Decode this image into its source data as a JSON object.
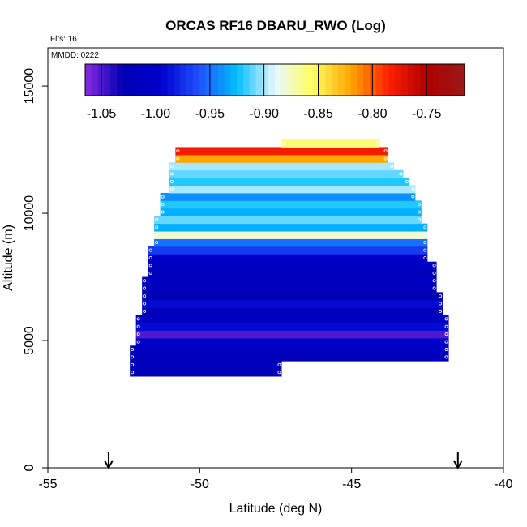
{
  "chart_data": {
    "type": "heatmap",
    "title": "ORCAS RF16 DBARU_RWO (Log)",
    "xlabel": "Latitude (deg N)",
    "ylabel": "Altitude (m)",
    "xlim": [
      -55,
      -40
    ],
    "ylim": [
      0,
      16500
    ],
    "x_ticks": [
      "-55",
      "-50",
      "-45",
      "-40"
    ],
    "y_ticks": [
      "0",
      "5000",
      "10000",
      "15000"
    ],
    "notes": [
      "Flts: 16",
      "MMDD: 0222"
    ],
    "colorbar": {
      "range": [
        -1.065,
        -0.715
      ],
      "ticks": [
        "-1.05",
        "-1.00",
        "-0.95",
        "-0.90",
        "-0.85",
        "-0.80",
        "-0.75"
      ],
      "colors": [
        "#8a2be2",
        "#0000b4",
        "#0000cd",
        "#2050ff",
        "#00bfff",
        "#e8f8ff",
        "#ffff60",
        "#ffa500",
        "#ff2000",
        "#b00000",
        "#9a1a1a"
      ]
    },
    "markers": [
      -53.0,
      -41.5
    ],
    "rows": [
      {
        "alt": 3600,
        "x0": -52.3,
        "x1": -47.3,
        "value": -1.03
      },
      {
        "alt": 3900,
        "x0": -52.3,
        "x1": -47.3,
        "value": -1.02
      },
      {
        "alt": 4200,
        "x0": -52.3,
        "x1": -41.8,
        "value": -1.02
      },
      {
        "alt": 4500,
        "x0": -52.3,
        "x1": -41.8,
        "value": -1.01
      },
      {
        "alt": 4800,
        "x0": -52.1,
        "x1": -41.8,
        "value": -1.0
      },
      {
        "alt": 5100,
        "x0": -52.1,
        "x1": -41.8,
        "value": -1.05
      },
      {
        "alt": 5400,
        "x0": -52.1,
        "x1": -41.8,
        "value": -0.99
      },
      {
        "alt": 5700,
        "x0": -52.1,
        "x1": -41.8,
        "value": -1.01
      },
      {
        "alt": 6000,
        "x0": -51.9,
        "x1": -42.0,
        "value": -1.02
      },
      {
        "alt": 6300,
        "x0": -51.9,
        "x1": -42.0,
        "value": -0.99
      },
      {
        "alt": 6600,
        "x0": -51.9,
        "x1": -42.0,
        "value": -1.03
      },
      {
        "alt": 6900,
        "x0": -51.9,
        "x1": -42.2,
        "value": -1.02
      },
      {
        "alt": 7200,
        "x0": -51.9,
        "x1": -42.2,
        "value": -1.01
      },
      {
        "alt": 7500,
        "x0": -51.7,
        "x1": -42.2,
        "value": -1.02
      },
      {
        "alt": 7800,
        "x0": -51.7,
        "x1": -42.2,
        "value": -1.01
      },
      {
        "alt": 8100,
        "x0": -51.7,
        "x1": -42.5,
        "value": -1.0
      },
      {
        "alt": 8400,
        "x0": -51.7,
        "x1": -42.5,
        "value": -0.97
      },
      {
        "alt": 8700,
        "x0": -51.5,
        "x1": -42.5,
        "value": -0.95
      },
      {
        "alt": 9000,
        "x0": -51.5,
        "x1": -42.5,
        "value": -0.88
      },
      {
        "alt": 9300,
        "x0": -51.5,
        "x1": -42.5,
        "value": -0.93
      },
      {
        "alt": 9600,
        "x0": -51.5,
        "x1": -42.7,
        "value": -0.91
      },
      {
        "alt": 9900,
        "x0": -51.3,
        "x1": -42.7,
        "value": -0.93
      },
      {
        "alt": 10200,
        "x0": -51.3,
        "x1": -42.7,
        "value": -0.92
      },
      {
        "alt": 10500,
        "x0": -51.3,
        "x1": -42.9,
        "value": -0.94
      },
      {
        "alt": 10800,
        "x0": -51.0,
        "x1": -42.9,
        "value": -0.9
      },
      {
        "alt": 11100,
        "x0": -51.0,
        "x1": -43.1,
        "value": -0.92
      },
      {
        "alt": 11400,
        "x0": -51.0,
        "x1": -43.3,
        "value": -0.91
      },
      {
        "alt": 11700,
        "x0": -51.0,
        "x1": -43.6,
        "value": -0.9
      },
      {
        "alt": 12000,
        "x0": -50.8,
        "x1": -43.8,
        "value": -0.82
      },
      {
        "alt": 12300,
        "x0": -50.8,
        "x1": -43.8,
        "value": -0.78
      },
      {
        "alt": 12600,
        "x0": -47.3,
        "x1": -44.1,
        "value": -0.86
      }
    ]
  }
}
